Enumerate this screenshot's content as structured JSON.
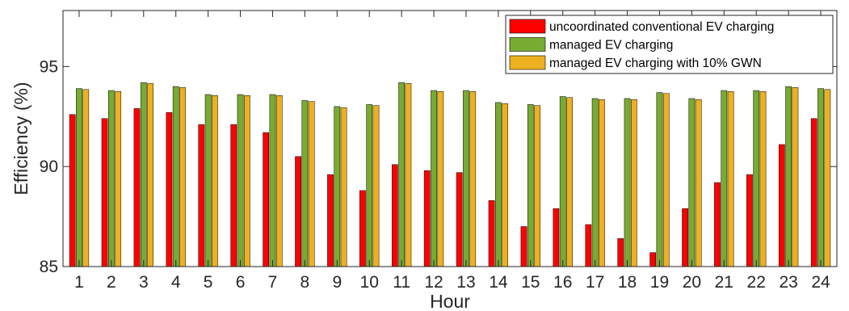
{
  "chart_data": {
    "type": "bar",
    "xlabel": "Hour",
    "ylabel": "Efficiency (%)",
    "ylim": [
      85,
      97.8
    ],
    "yticks": [
      85,
      90,
      95
    ],
    "categories": [
      "1",
      "2",
      "3",
      "4",
      "5",
      "6",
      "7",
      "8",
      "9",
      "10",
      "11",
      "12",
      "13",
      "14",
      "15",
      "16",
      "17",
      "18",
      "19",
      "20",
      "21",
      "22",
      "23",
      "24"
    ],
    "legend_position": "top-right",
    "grid": false,
    "series": [
      {
        "name": "uncoordinated conventional EV charging",
        "color": "#ff0000",
        "values": [
          92.6,
          92.4,
          92.9,
          92.7,
          92.1,
          92.1,
          91.7,
          90.5,
          89.6,
          88.8,
          90.1,
          89.8,
          89.7,
          88.3,
          87.0,
          87.9,
          87.1,
          86.4,
          85.7,
          87.9,
          89.2,
          89.6,
          91.1,
          92.4
        ]
      },
      {
        "name": "managed EV charging",
        "color": "#77ac30",
        "values": [
          93.9,
          93.8,
          94.2,
          94.0,
          93.6,
          93.6,
          93.6,
          93.3,
          93.0,
          93.1,
          94.2,
          93.8,
          93.8,
          93.2,
          93.1,
          93.5,
          93.4,
          93.4,
          93.7,
          93.4,
          93.8,
          93.8,
          94.0,
          93.9
        ]
      },
      {
        "name": "managed EV charging with 10% GWN",
        "color": "#edb120",
        "values": [
          93.85,
          93.75,
          94.15,
          93.95,
          93.55,
          93.55,
          93.55,
          93.25,
          92.95,
          93.05,
          94.15,
          93.75,
          93.75,
          93.15,
          93.05,
          93.45,
          93.35,
          93.35,
          93.65,
          93.35,
          93.75,
          93.75,
          93.95,
          93.85
        ]
      }
    ]
  }
}
